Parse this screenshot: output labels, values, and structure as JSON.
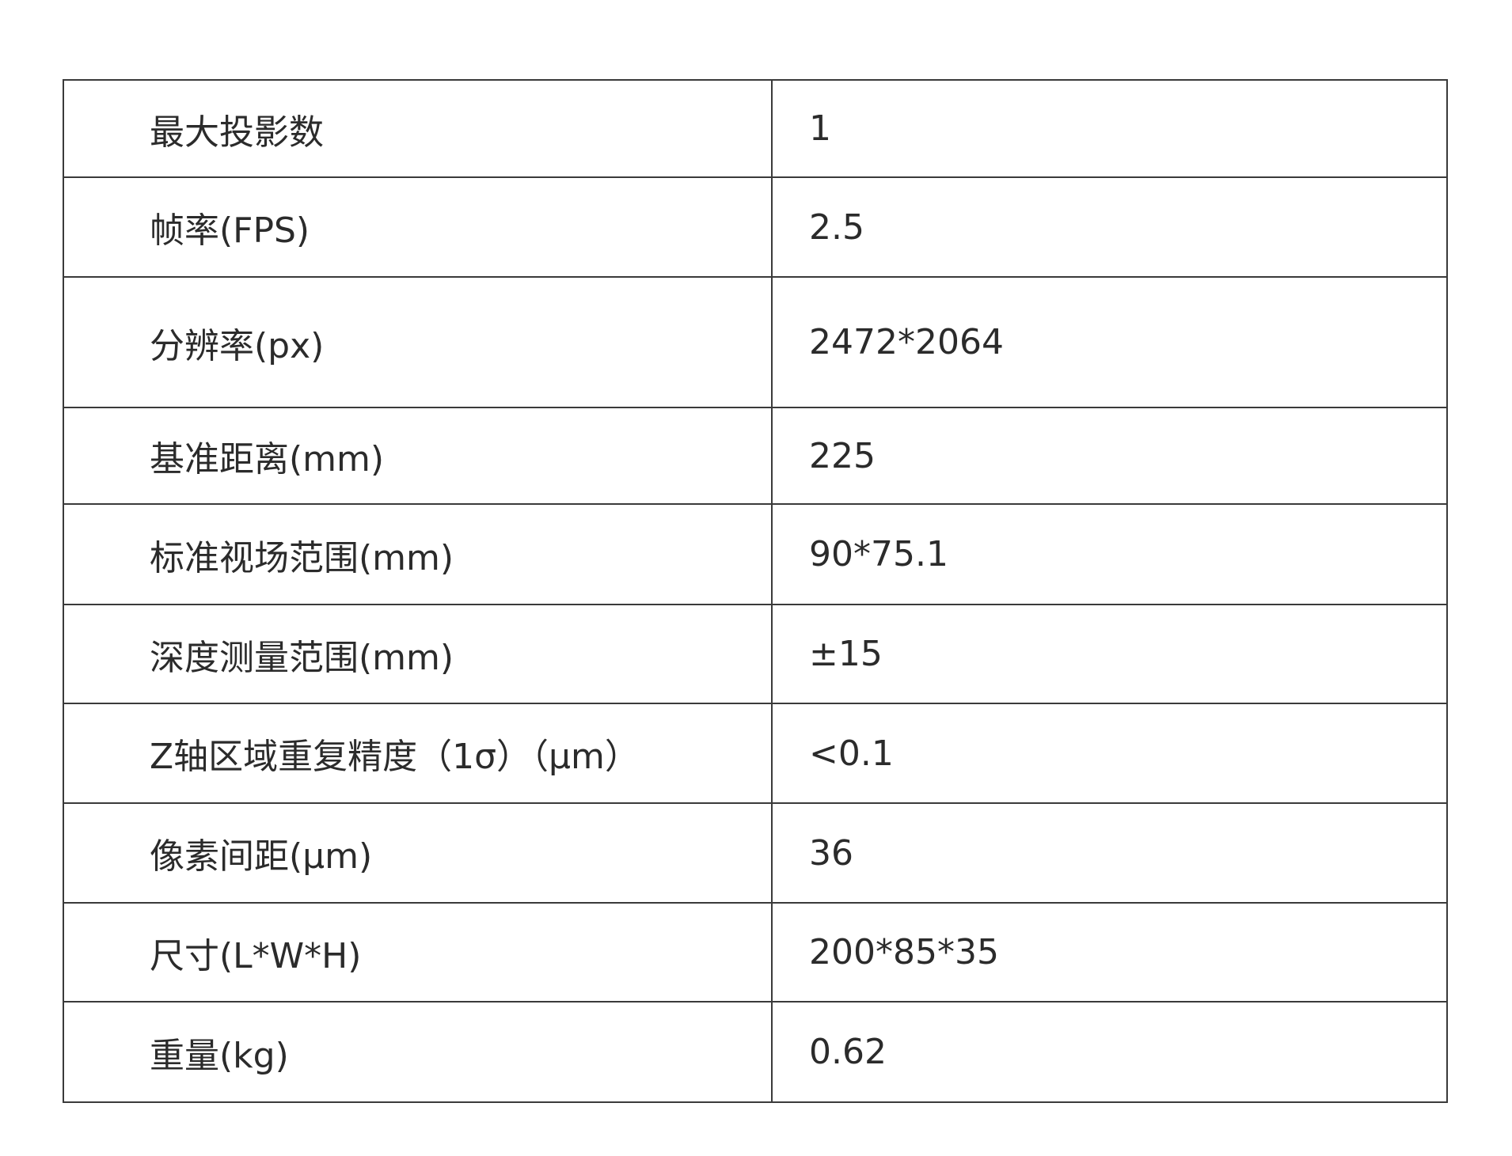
{
  "spec_table": {
    "rows": [
      {
        "label": "最大投影数",
        "value": "1"
      },
      {
        "label": "帧率(FPS)",
        "value": "2.5"
      },
      {
        "label": "分辨率(px)",
        "value": "2472*2064"
      },
      {
        "label": "基准距离(mm)",
        "value": "225"
      },
      {
        "label": "标准视场范围(mm)",
        "value": "90*75.1"
      },
      {
        "label": "深度测量范围(mm)",
        "value": "±15"
      },
      {
        "label": "Z轴区域重复精度（1σ）（μm）",
        "value": "<0.1"
      },
      {
        "label": "像素间距(μm)",
        "value": "36"
      },
      {
        "label": "尺寸(L*W*H)",
        "value": "200*85*35"
      },
      {
        "label": "重量(kg)",
        "value": "0.62"
      }
    ]
  }
}
